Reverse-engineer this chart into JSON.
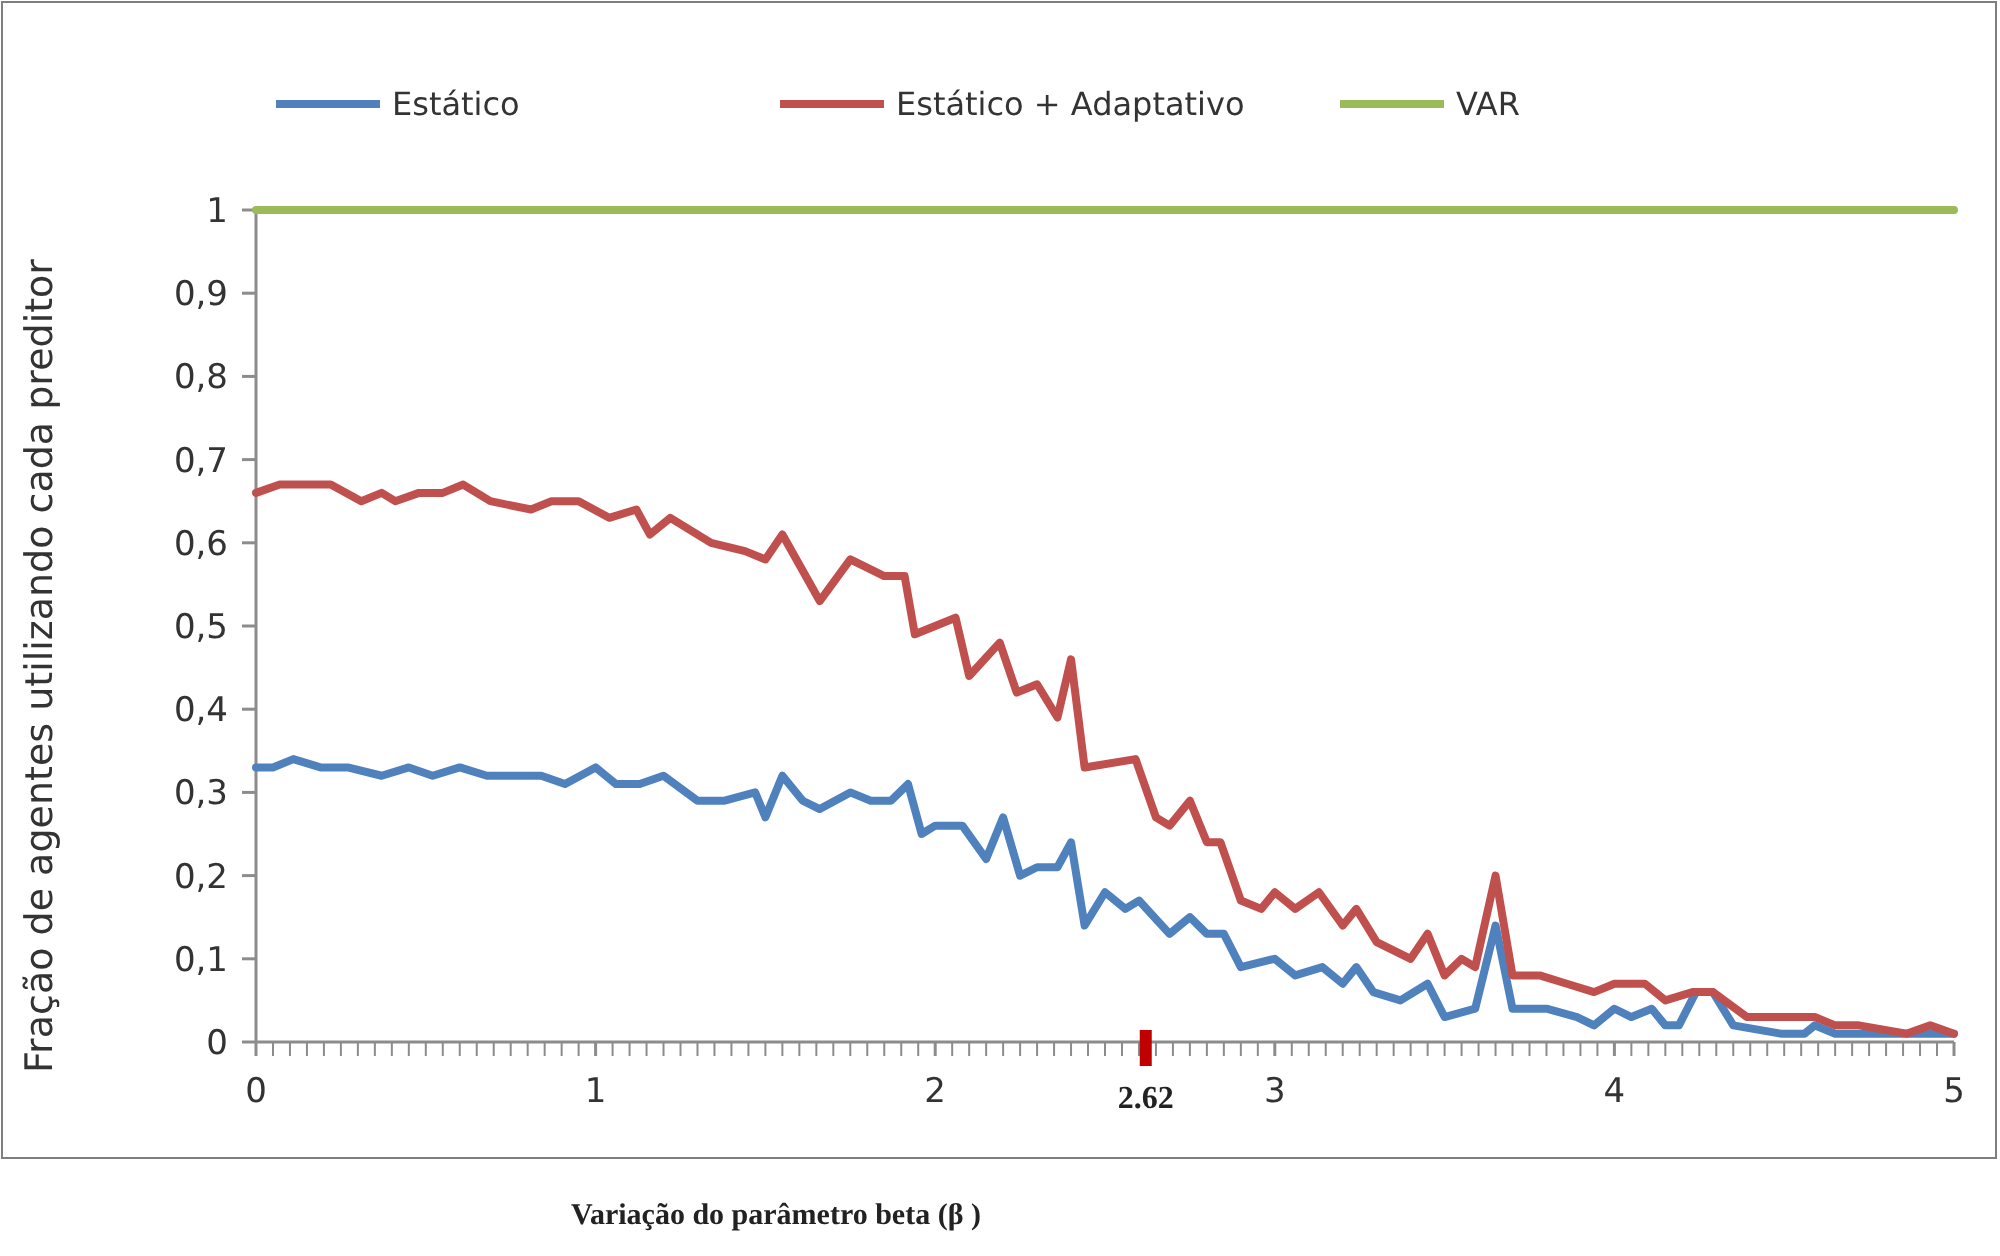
{
  "chart_data": {
    "type": "line",
    "xlabel": "Variação do parâmetro beta (β )",
    "ylabel": "Fração de agentes utilizando cada preditor",
    "xlim": [
      0,
      5
    ],
    "ylim": [
      0,
      1
    ],
    "xticks": [
      0,
      1,
      2,
      3,
      4,
      5
    ],
    "yticks": [
      {
        "value": 0,
        "label": "0"
      },
      {
        "value": 0.1,
        "label": "0,1"
      },
      {
        "value": 0.2,
        "label": "0,2"
      },
      {
        "value": 0.3,
        "label": "0,3"
      },
      {
        "value": 0.4,
        "label": "0,4"
      },
      {
        "value": 0.5,
        "label": "0,5"
      },
      {
        "value": 0.6,
        "label": "0,6"
      },
      {
        "value": 0.7,
        "label": "0,7"
      },
      {
        "value": 0.8,
        "label": "0,8"
      },
      {
        "value": 0.9,
        "label": "0,9"
      },
      1
    ],
    "ref_lines": [
      {
        "axis": "x",
        "value": 2.62,
        "label": "2.62",
        "color": "#c00000"
      }
    ],
    "legend": "top",
    "grid": false,
    "marker": "none",
    "line_style": "solid",
    "series": [
      {
        "name": "Estático",
        "color": "#4f81bd",
        "x": [
          0,
          0.05,
          0.11,
          0.19,
          0.27,
          0.37,
          0.45,
          0.52,
          0.6,
          0.68,
          0.76,
          0.84,
          0.91,
          1.0,
          1.06,
          1.13,
          1.2,
          1.3,
          1.38,
          1.47,
          1.5,
          1.55,
          1.61,
          1.66,
          1.75,
          1.81,
          1.87,
          1.92,
          1.96,
          2.0,
          2.08,
          2.15,
          2.2,
          2.25,
          2.3,
          2.36,
          2.4,
          2.44,
          2.5,
          2.56,
          2.6,
          2.69,
          2.75,
          2.8,
          2.85,
          2.9,
          3.0,
          3.06,
          3.14,
          3.2,
          3.24,
          3.29,
          3.37,
          3.45,
          3.5,
          3.59,
          3.65,
          3.7,
          3.8,
          3.89,
          3.94,
          4.0,
          4.05,
          4.11,
          4.15,
          4.19,
          4.24,
          4.29,
          4.35,
          4.49,
          4.56,
          4.59,
          4.65,
          4.86,
          4.92,
          5.0
        ],
        "values": [
          0.33,
          0.33,
          0.34,
          0.33,
          0.33,
          0.32,
          0.33,
          0.32,
          0.33,
          0.32,
          0.32,
          0.32,
          0.31,
          0.33,
          0.31,
          0.31,
          0.32,
          0.29,
          0.29,
          0.3,
          0.27,
          0.32,
          0.29,
          0.28,
          0.3,
          0.29,
          0.29,
          0.31,
          0.25,
          0.26,
          0.26,
          0.22,
          0.27,
          0.2,
          0.21,
          0.21,
          0.24,
          0.14,
          0.18,
          0.16,
          0.17,
          0.13,
          0.15,
          0.13,
          0.13,
          0.09,
          0.1,
          0.08,
          0.09,
          0.07,
          0.09,
          0.06,
          0.05,
          0.07,
          0.03,
          0.04,
          0.14,
          0.04,
          0.04,
          0.03,
          0.02,
          0.04,
          0.03,
          0.04,
          0.02,
          0.02,
          0.06,
          0.06,
          0.02,
          0.01,
          0.01,
          0.02,
          0.01,
          0.01,
          0.01,
          0.01
        ]
      },
      {
        "name": "Estático + Adaptativo",
        "color": "#c0504d",
        "x": [
          0,
          0.07,
          0.13,
          0.22,
          0.31,
          0.37,
          0.41,
          0.48,
          0.55,
          0.61,
          0.69,
          0.81,
          0.87,
          0.95,
          1.04,
          1.12,
          1.16,
          1.22,
          1.34,
          1.44,
          1.5,
          1.55,
          1.66,
          1.75,
          1.85,
          1.91,
          1.94,
          2.06,
          2.1,
          2.19,
          2.24,
          2.3,
          2.36,
          2.4,
          2.44,
          2.59,
          2.65,
          2.69,
          2.75,
          2.8,
          2.84,
          2.9,
          2.96,
          3.0,
          3.06,
          3.13,
          3.2,
          3.24,
          3.3,
          3.4,
          3.45,
          3.5,
          3.55,
          3.59,
          3.65,
          3.7,
          3.78,
          3.86,
          3.94,
          4.0,
          4.09,
          4.15,
          4.23,
          4.29,
          4.39,
          4.55,
          4.59,
          4.65,
          4.72,
          4.86,
          4.93,
          5.0
        ],
        "values": [
          0.66,
          0.67,
          0.67,
          0.67,
          0.65,
          0.66,
          0.65,
          0.66,
          0.66,
          0.67,
          0.65,
          0.64,
          0.65,
          0.65,
          0.63,
          0.64,
          0.61,
          0.63,
          0.6,
          0.59,
          0.58,
          0.61,
          0.53,
          0.58,
          0.56,
          0.56,
          0.49,
          0.51,
          0.44,
          0.48,
          0.42,
          0.43,
          0.39,
          0.46,
          0.33,
          0.34,
          0.27,
          0.26,
          0.29,
          0.24,
          0.24,
          0.17,
          0.16,
          0.18,
          0.16,
          0.18,
          0.14,
          0.16,
          0.12,
          0.1,
          0.13,
          0.08,
          0.1,
          0.09,
          0.2,
          0.08,
          0.08,
          0.07,
          0.06,
          0.07,
          0.07,
          0.05,
          0.06,
          0.06,
          0.03,
          0.03,
          0.03,
          0.02,
          0.02,
          0.01,
          0.02,
          0.01
        ]
      },
      {
        "name": "VAR",
        "color": "#9bbb59",
        "x": [
          0,
          5
        ],
        "values": [
          1,
          1
        ]
      }
    ]
  }
}
